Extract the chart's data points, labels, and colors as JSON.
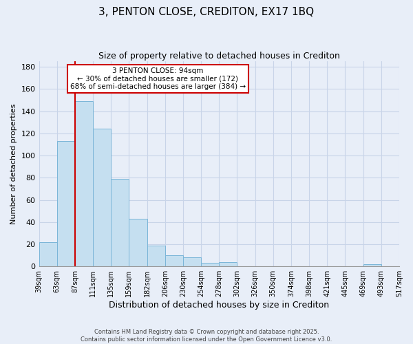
{
  "title": "3, PENTON CLOSE, CREDITON, EX17 1BQ",
  "subtitle": "Size of property relative to detached houses in Crediton",
  "xlabel": "Distribution of detached houses by size in Crediton",
  "ylabel": "Number of detached properties",
  "bar_values": [
    22,
    113,
    149,
    124,
    79,
    43,
    19,
    10,
    8,
    3,
    4,
    0,
    0,
    0,
    0,
    0,
    0,
    0,
    2,
    0
  ],
  "bar_labels": [
    "39sqm",
    "63sqm",
    "87sqm",
    "111sqm",
    "135sqm",
    "159sqm",
    "182sqm",
    "206sqm",
    "230sqm",
    "254sqm",
    "278sqm",
    "302sqm",
    "326sqm",
    "350sqm",
    "374sqm",
    "398sqm",
    "421sqm",
    "445sqm",
    "469sqm",
    "493sqm",
    "517sqm"
  ],
  "bar_color": "#c5dff0",
  "bar_edge_color": "#7ab5d8",
  "vline_color": "#cc0000",
  "vline_position": 2,
  "ylim": [
    0,
    185
  ],
  "yticks": [
    0,
    20,
    40,
    60,
    80,
    100,
    120,
    140,
    160,
    180
  ],
  "annotation_text_line1": "3 PENTON CLOSE: 94sqm",
  "annotation_text_line2": "← 30% of detached houses are smaller (172)",
  "annotation_text_line3": "68% of semi-detached houses are larger (384) →",
  "footer_line1": "Contains HM Land Registry data © Crown copyright and database right 2025.",
  "footer_line2": "Contains public sector information licensed under the Open Government Licence v3.0.",
  "background_color": "#e8eef8",
  "grid_color": "#c8d4e8",
  "title_fontsize": 11,
  "subtitle_fontsize": 9,
  "ylabel_fontsize": 8,
  "xlabel_fontsize": 9,
  "tick_fontsize": 7,
  "ytick_fontsize": 8
}
